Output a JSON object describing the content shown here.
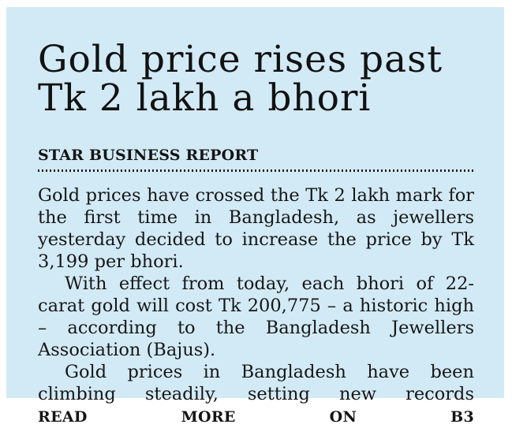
{
  "colors": {
    "page_background": "#ffffff",
    "panel_background": "#d2eaf6",
    "text": "#141414"
  },
  "article": {
    "headline_lines": [
      "Gold price rises past",
      "Tk 2 lakh a bhori"
    ],
    "byline": "STAR BUSINESS REPORT",
    "paragraphs": [
      "Gold prices have crossed the Tk 2 lakh mark for the first time in Bangladesh, as jewellers yesterday decided to increase the price by Tk 3,199 per bhori.",
      "With effect from today, each bhori of 22-carat gold will cost Tk 200,775 – a historic high – according to the Bangladesh Jewellers Association (Bajus).",
      "Gold prices in Bangladesh have been climbing steadily, setting new records"
    ],
    "read_more_label": "READ MORE ON B3"
  }
}
